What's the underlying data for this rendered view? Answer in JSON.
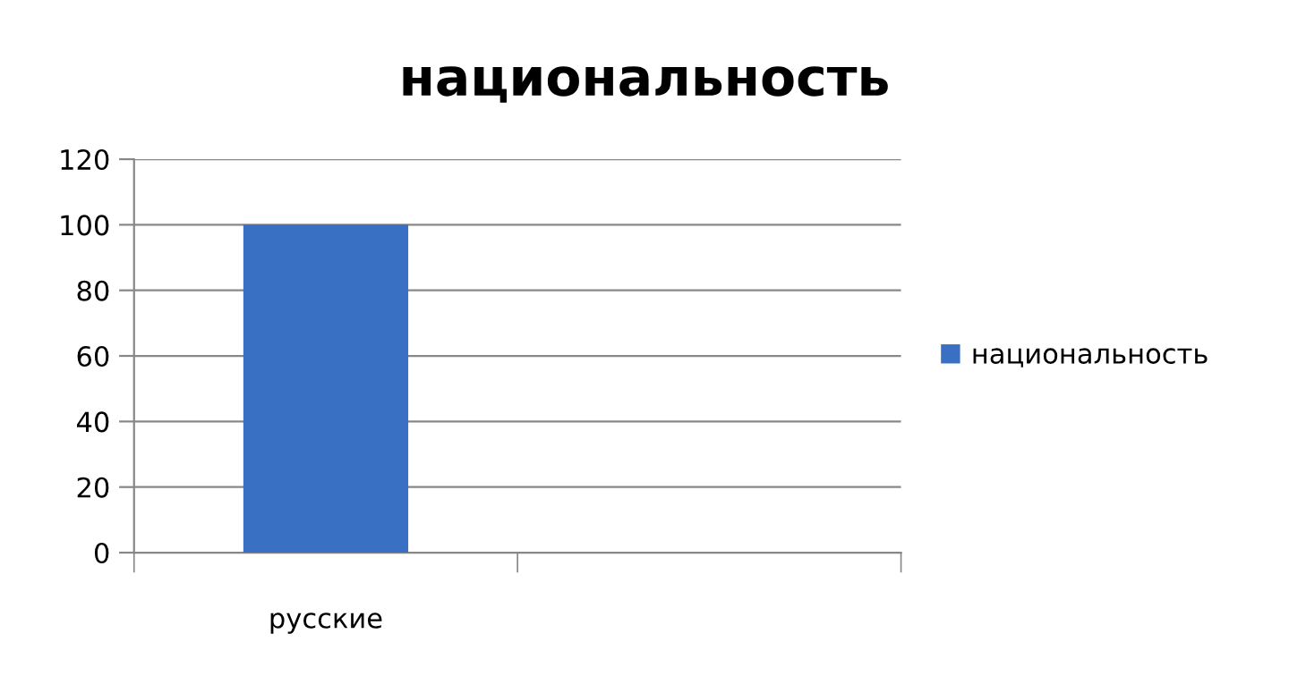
{
  "chart_data": {
    "type": "bar",
    "title": "национальность",
    "categories": [
      "русские",
      null
    ],
    "series": [
      {
        "name": "национальность",
        "color": "#3a70c4",
        "values": [
          100,
          null
        ]
      }
    ],
    "ylim": [
      0,
      120
    ],
    "yticks": [
      0,
      20,
      40,
      60,
      80,
      100,
      120
    ],
    "grid": "y",
    "legend": "right"
  }
}
